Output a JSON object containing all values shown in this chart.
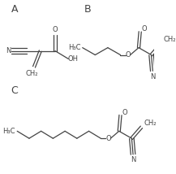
{
  "background_color": "#ffffff",
  "label_A": "A",
  "label_B": "B",
  "label_C": "C",
  "font_size_label": 9,
  "font_size_atom": 6.0,
  "line_color": "#444444",
  "line_width": 0.9
}
